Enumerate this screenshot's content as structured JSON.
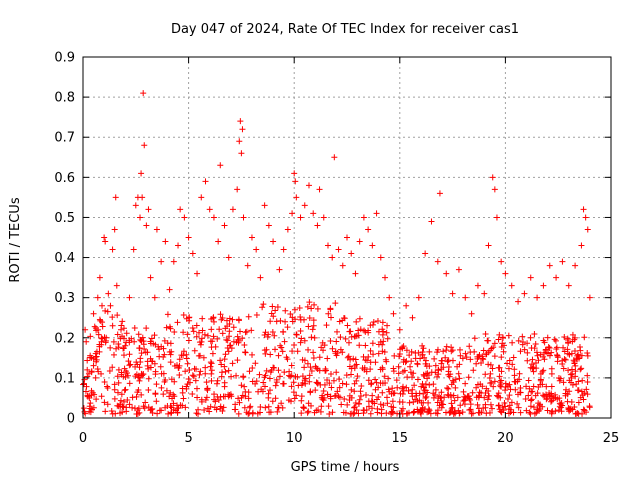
{
  "chart_data": {
    "type": "scatter",
    "title": "Day 047 of 2024, Rate Of TEC Index for receiver cas1",
    "xlabel": "GPS time / hours",
    "ylabel": "ROTI / TECUs",
    "xlim": [
      0,
      25
    ],
    "ylim": [
      0,
      0.9
    ],
    "xticks": [
      0,
      5,
      10,
      15,
      20,
      25
    ],
    "yticks": [
      0,
      0.1,
      0.2,
      0.3,
      0.4,
      0.5,
      0.6,
      0.7,
      0.8,
      0.9
    ],
    "grid": true,
    "marker": "+",
    "series": [
      {
        "name": "cas1 ROTI",
        "color": "#ff0000",
        "points": [
          [
            0.1,
            0.22
          ],
          [
            0.15,
            0.19
          ],
          [
            0.2,
            0.12
          ],
          [
            0.3,
            0.05
          ],
          [
            0.4,
            0.15
          ],
          [
            0.5,
            0.26
          ],
          [
            0.6,
            0.1
          ],
          [
            0.7,
            0.3
          ],
          [
            0.8,
            0.35
          ],
          [
            0.9,
            0.28
          ],
          [
            1.0,
            0.45
          ],
          [
            1.05,
            0.44
          ],
          [
            1.1,
            0.2
          ],
          [
            1.2,
            0.31
          ],
          [
            1.3,
            0.28
          ],
          [
            1.4,
            0.42
          ],
          [
            1.5,
            0.47
          ],
          [
            1.55,
            0.55
          ],
          [
            1.6,
            0.33
          ],
          [
            1.7,
            0.12
          ],
          [
            1.8,
            0.22
          ],
          [
            2.0,
            0.18
          ],
          [
            2.2,
            0.3
          ],
          [
            2.4,
            0.42
          ],
          [
            2.5,
            0.53
          ],
          [
            2.6,
            0.55
          ],
          [
            2.7,
            0.5
          ],
          [
            2.75,
            0.61
          ],
          [
            2.8,
            0.55
          ],
          [
            2.85,
            0.81
          ],
          [
            2.9,
            0.68
          ],
          [
            3.0,
            0.48
          ],
          [
            3.1,
            0.52
          ],
          [
            3.2,
            0.35
          ],
          [
            3.4,
            0.3
          ],
          [
            3.5,
            0.47
          ],
          [
            3.7,
            0.39
          ],
          [
            3.9,
            0.44
          ],
          [
            4.1,
            0.32
          ],
          [
            4.3,
            0.39
          ],
          [
            4.5,
            0.43
          ],
          [
            4.6,
            0.52
          ],
          [
            4.8,
            0.5
          ],
          [
            5.0,
            0.45
          ],
          [
            5.2,
            0.41
          ],
          [
            5.4,
            0.36
          ],
          [
            5.6,
            0.55
          ],
          [
            5.8,
            0.59
          ],
          [
            6.0,
            0.52
          ],
          [
            6.2,
            0.5
          ],
          [
            6.4,
            0.44
          ],
          [
            6.5,
            0.63
          ],
          [
            6.7,
            0.48
          ],
          [
            6.9,
            0.4
          ],
          [
            7.1,
            0.52
          ],
          [
            7.3,
            0.57
          ],
          [
            7.4,
            0.69
          ],
          [
            7.45,
            0.74
          ],
          [
            7.5,
            0.66
          ],
          [
            7.55,
            0.72
          ],
          [
            7.6,
            0.5
          ],
          [
            7.8,
            0.38
          ],
          [
            8.0,
            0.45
          ],
          [
            8.2,
            0.42
          ],
          [
            8.4,
            0.35
          ],
          [
            8.6,
            0.53
          ],
          [
            8.8,
            0.48
          ],
          [
            9.0,
            0.44
          ],
          [
            9.3,
            0.37
          ],
          [
            9.5,
            0.42
          ],
          [
            9.7,
            0.47
          ],
          [
            9.9,
            0.51
          ],
          [
            10.0,
            0.61
          ],
          [
            10.05,
            0.59
          ],
          [
            10.1,
            0.55
          ],
          [
            10.3,
            0.5
          ],
          [
            10.5,
            0.53
          ],
          [
            10.7,
            0.58
          ],
          [
            10.9,
            0.51
          ],
          [
            11.1,
            0.48
          ],
          [
            11.2,
            0.57
          ],
          [
            11.4,
            0.5
          ],
          [
            11.6,
            0.43
          ],
          [
            11.8,
            0.4
          ],
          [
            11.9,
            0.65
          ],
          [
            12.1,
            0.42
          ],
          [
            12.3,
            0.38
          ],
          [
            12.5,
            0.45
          ],
          [
            12.7,
            0.41
          ],
          [
            12.9,
            0.36
          ],
          [
            13.1,
            0.44
          ],
          [
            13.3,
            0.5
          ],
          [
            13.5,
            0.47
          ],
          [
            13.7,
            0.43
          ],
          [
            13.9,
            0.51
          ],
          [
            14.1,
            0.4
          ],
          [
            14.3,
            0.35
          ],
          [
            14.5,
            0.3
          ],
          [
            14.7,
            0.26
          ],
          [
            15.0,
            0.22
          ],
          [
            15.3,
            0.28
          ],
          [
            15.6,
            0.25
          ],
          [
            15.9,
            0.3
          ],
          [
            16.2,
            0.41
          ],
          [
            16.5,
            0.49
          ],
          [
            16.8,
            0.39
          ],
          [
            16.9,
            0.56
          ],
          [
            17.2,
            0.36
          ],
          [
            17.5,
            0.31
          ],
          [
            17.8,
            0.37
          ],
          [
            18.1,
            0.3
          ],
          [
            18.4,
            0.26
          ],
          [
            18.7,
            0.33
          ],
          [
            19.0,
            0.31
          ],
          [
            19.2,
            0.43
          ],
          [
            19.4,
            0.6
          ],
          [
            19.5,
            0.57
          ],
          [
            19.6,
            0.5
          ],
          [
            19.8,
            0.39
          ],
          [
            20.0,
            0.36
          ],
          [
            20.3,
            0.33
          ],
          [
            20.6,
            0.29
          ],
          [
            20.9,
            0.31
          ],
          [
            21.2,
            0.35
          ],
          [
            21.5,
            0.3
          ],
          [
            21.8,
            0.33
          ],
          [
            22.1,
            0.38
          ],
          [
            22.4,
            0.35
          ],
          [
            22.7,
            0.39
          ],
          [
            23.0,
            0.33
          ],
          [
            23.3,
            0.38
          ],
          [
            23.6,
            0.43
          ],
          [
            23.7,
            0.52
          ],
          [
            23.8,
            0.5
          ],
          [
            23.9,
            0.47
          ],
          [
            24.0,
            0.3
          ]
        ]
      }
    ]
  }
}
